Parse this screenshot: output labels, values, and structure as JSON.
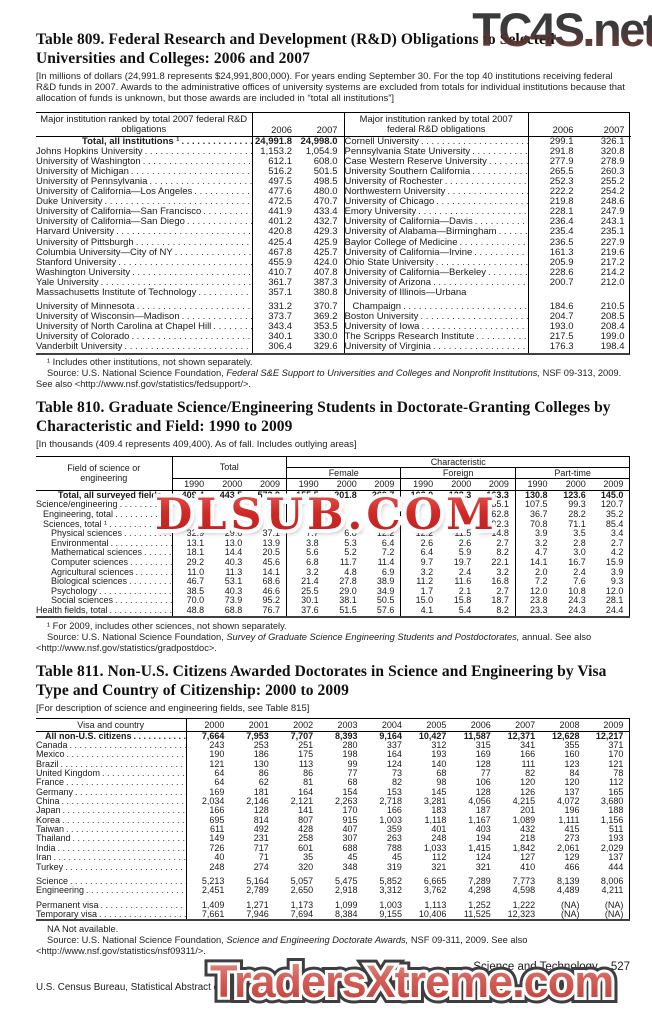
{
  "watermarks": {
    "top": "TC4S.net",
    "middle": "DLSUB.COM",
    "bottom": "TradersXtreme.com"
  },
  "tables": {
    "t809": {
      "title": "Table 809. Federal Research and Development (R&D) Obligations to Selected Universities and Colleges: 2006 and 2007",
      "note": "[In millions of dollars (24,991.8 represents $24,991,800,000). For years ending September 30. For the top 40 institutions receiving federal R&D funds in 2007. Awards to the administrative offices of university systems are excluded from totals for individual institutions because that allocation of funds is unknown, but those awards are included in “total all institutions”]",
      "header_label": "Major institution ranked by total 2007 federal R&D obligations",
      "years": [
        "2006",
        "2007"
      ],
      "left_rows": [
        {
          "label": "Total, all institutions ¹",
          "bold": true,
          "ind": 3,
          "v": [
            "24,991.8",
            "24,998.0"
          ]
        },
        {
          "label": "Johns Hopkins University",
          "v": [
            "1,153.2",
            "1,054.9"
          ]
        },
        {
          "label": "University of Washington",
          "v": [
            "612.1",
            "608.0"
          ]
        },
        {
          "label": "University of Michigan",
          "v": [
            "516.2",
            "501.5"
          ]
        },
        {
          "label": "University of Pennsylvania",
          "v": [
            "497.5",
            "498.5"
          ]
        },
        {
          "label": "University of California—Los Angeles",
          "v": [
            "477.6",
            "480.0"
          ]
        },
        {
          "label": "Duke University",
          "v": [
            "472.5",
            "470.7"
          ]
        },
        {
          "label": "University of California—San Francisco",
          "v": [
            "441.9",
            "433.4"
          ]
        },
        {
          "label": "University of California—San Diego",
          "v": [
            "401.2",
            "432.7"
          ]
        },
        {
          "label": "Harvard University",
          "v": [
            "420.8",
            "429.3"
          ]
        },
        {
          "label": "University of Pittsburgh",
          "v": [
            "425.4",
            "425.9"
          ]
        },
        {
          "label": "Columbia University—City of NY",
          "v": [
            "467.8",
            "425.7"
          ]
        },
        {
          "label": "Stanford University",
          "v": [
            "455.9",
            "424.0"
          ]
        },
        {
          "label": "Washington University",
          "v": [
            "410.7",
            "407.8"
          ]
        },
        {
          "label": "Yale University",
          "v": [
            "361.7",
            "387.3"
          ]
        },
        {
          "label": "Massachusetts Institute of Technology",
          "v": [
            "357.1",
            "380.8"
          ]
        },
        {
          "label": "University of Minnesota",
          "gap": true,
          "v": [
            "331.2",
            "370.7"
          ]
        },
        {
          "label": "University of Wisconsin—Madison",
          "v": [
            "373.7",
            "369.2"
          ]
        },
        {
          "label": "University of North Carolina at Chapel Hill",
          "v": [
            "343.4",
            "353.5"
          ]
        },
        {
          "label": "University of Colorado",
          "v": [
            "340.1",
            "330.0"
          ]
        },
        {
          "label": "Vanderbilt University",
          "v": [
            "306.4",
            "329.6"
          ]
        }
      ],
      "right_rows": [
        {
          "label": "Cornell University",
          "v": [
            "299.1",
            "326.1"
          ]
        },
        {
          "label": "Pennsylvania State University",
          "v": [
            "291.8",
            "320.8"
          ]
        },
        {
          "label": "Case Western Reserve University",
          "v": [
            "277.9",
            "278.9"
          ]
        },
        {
          "label": "University Southern California",
          "v": [
            "265.5",
            "260.3"
          ]
        },
        {
          "label": "University of Rochester",
          "v": [
            "252.3",
            "255.2"
          ]
        },
        {
          "label": "Northwestern University",
          "v": [
            "222.2",
            "254.2"
          ]
        },
        {
          "label": "University of Chicago",
          "v": [
            "219.8",
            "248.6"
          ]
        },
        {
          "label": "Emory University",
          "v": [
            "228.1",
            "247.9"
          ]
        },
        {
          "label": "University of California—Davis",
          "v": [
            "236.4",
            "243.1"
          ]
        },
        {
          "label": "University of Alabama—Birmingham",
          "v": [
            "235.4",
            "235.1"
          ]
        },
        {
          "label": "Baylor College of Medicine",
          "v": [
            "236.5",
            "227.9"
          ]
        },
        {
          "label": "University of California—Irvine",
          "v": [
            "161.3",
            "219.6"
          ]
        },
        {
          "label": "Ohio State University",
          "v": [
            "205.9",
            "217.2"
          ]
        },
        {
          "label": "University of California—Berkeley",
          "v": [
            "228.6",
            "214.2"
          ]
        },
        {
          "label": "University of Arizona",
          "v": [
            "200.7",
            "212.0"
          ]
        },
        {
          "label": "University of Illinois—Urbana",
          "nodots": true,
          "v": [
            "",
            ""
          ]
        },
        {
          "label": "Champaign",
          "gap": true,
          "ind": 1,
          "v": [
            "184.6",
            "210.5"
          ]
        },
        {
          "label": "Boston University",
          "v": [
            "204.7",
            "208.5"
          ]
        },
        {
          "label": "University of Iowa",
          "v": [
            "193.0",
            "208.4"
          ]
        },
        {
          "label": "The Scripps Research Institute",
          "v": [
            "217.5",
            "199.0"
          ]
        },
        {
          "label": "University of Virginia",
          "v": [
            "176.3",
            "198.4"
          ]
        }
      ],
      "footnote": "¹ Includes other institutions, not shown separately.",
      "source_pre": "Source: U.S. National Science Foundation, ",
      "source_italic": "Federal S&E Support to Universities and Colleges and Nonprofit Institutions,",
      "source_post": " NSF 09-313, 2009. See also <http://www.nsf.gov/statistics/fedsupport/>."
    },
    "t810": {
      "title": "Table 810. Graduate Science/Engineering Students in Doctorate-Granting Colleges by Characteristic and Field: 1990 to 2009",
      "note": "[In thousands (409.4 represents 409,400). As of fall. Includes outlying areas]",
      "field_label": "Field of science or engineering",
      "group_total": "Total",
      "group_characteristic": "Characteristic",
      "subgroups": [
        "Female",
        "Foreign",
        "Part-time"
      ],
      "years3": [
        "1990",
        "2000",
        "2009"
      ],
      "rows": [
        {
          "label": "Total, all surveyed fields",
          "bold": true,
          "ind": 3,
          "v": [
            "409.4",
            "443.5",
            "573.9",
            "155.5",
            "201.8",
            "269.7",
            "103.0",
            "123.3",
            "163.3",
            "130.8",
            "123.6",
            "145.0"
          ]
        },
        {
          "label": "Science/engineering",
          "v": [
            "",
            "",
            "",
            "",
            "",
            "",
            "",
            "",
            "155.1",
            "107.5",
            "99.3",
            "120.7"
          ]
        },
        {
          "label": "Engineering, total",
          "ind": 1,
          "v": [
            "",
            "",
            "",
            "",
            "",
            "",
            "",
            "",
            "62.8",
            "36.7",
            "28.2",
            "35.2"
          ]
        },
        {
          "label": "Sciences, total ¹",
          "ind": 1,
          "v": [
            "",
            "",
            "",
            "",
            "",
            "",
            "",
            "",
            "92.3",
            "70.8",
            "71.1",
            "85.4"
          ]
        },
        {
          "label": "Physical sciences",
          "ind": 2,
          "v": [
            "32.9",
            "29.6",
            "37.1",
            "7.7",
            "6.8",
            "12.2",
            "12.2",
            "11.5",
            "14.8",
            "3.9",
            "3.5",
            "3.4"
          ]
        },
        {
          "label": "Environmental",
          "ind": 2,
          "v": [
            "13.1",
            "13.0",
            "13.9",
            "3.8",
            "5.3",
            "6.4",
            "2.6",
            "2.6",
            "2.7",
            "3.2",
            "2.8",
            "2.7"
          ]
        },
        {
          "label": "Mathematical sciences",
          "ind": 2,
          "v": [
            "18.1",
            "14.4",
            "20.5",
            "5.6",
            "5.2",
            "7.2",
            "6.4",
            "5.9",
            "8.2",
            "4.7",
            "3.0",
            "4.2"
          ]
        },
        {
          "label": "Computer sciences",
          "ind": 2,
          "v": [
            "29.2",
            "40.3",
            "45.6",
            "6.8",
            "11.7",
            "11.4",
            "9.7",
            "19.7",
            "22.1",
            "14.1",
            "16.7",
            "15.9"
          ]
        },
        {
          "label": "Agricultural sciences",
          "ind": 2,
          "v": [
            "11.0",
            "11.3",
            "14.1",
            "3.2",
            "4.8",
            "6.9",
            "3.2",
            "2.4",
            "3.2",
            "2.0",
            "2.4",
            "3.9"
          ]
        },
        {
          "label": "Biological sciences",
          "ind": 2,
          "v": [
            "46.7",
            "53.1",
            "68.6",
            "21.4",
            "27.8",
            "38.9",
            "11.2",
            "11.6",
            "16.8",
            "7.2",
            "7.6",
            "9.3"
          ]
        },
        {
          "label": "Psychology",
          "ind": 2,
          "v": [
            "38.5",
            "40.3",
            "46.6",
            "25.5",
            "29.0",
            "34.9",
            "1.7",
            "2.1",
            "2.7",
            "12.0",
            "10.8",
            "12.0"
          ]
        },
        {
          "label": "Social sciences",
          "ind": 2,
          "v": [
            "70.0",
            "73.9",
            "95.2",
            "30.1",
            "38.1",
            "50.5",
            "15.0",
            "15.8",
            "18.7",
            "23.8",
            "24.3",
            "28.1"
          ]
        },
        {
          "label": "Health fields, total",
          "v": [
            "48.8",
            "68.8",
            "76.7",
            "37.6",
            "51.5",
            "57.6",
            "4.1",
            "5.4",
            "8.2",
            "23.3",
            "24.3",
            "24.4"
          ]
        }
      ],
      "footnote": "¹ For 2009, includes other sciences, not shown separately.",
      "source_pre": "Source: U.S. National Science Foundation, ",
      "source_italic": "Survey of Graduate Science Engineering Students and Postdoctorates,",
      "source_post": " annual. See also <http://www.nsf.gov/statistics/gradpostdoc>."
    },
    "t811": {
      "title": "Table 811. Non-U.S. Citizens Awarded Doctorates in Science and Engineering by Visa Type and Country of Citizenship: 2000 to 2009",
      "note": "[For description of science and engineering fields, see Table 815]",
      "header_label": "Visa and country",
      "years": [
        "2000",
        "2001",
        "2002",
        "2003",
        "2004",
        "2005",
        "2006",
        "2007",
        "2008",
        "2009"
      ],
      "rows": [
        {
          "label": "All non-U.S. citizens",
          "bold": true,
          "ind": 1,
          "v": [
            "7,664",
            "7,953",
            "7,707",
            "8,393",
            "9,164",
            "10,427",
            "11,587",
            "12,371",
            "12,628",
            "12,217"
          ]
        },
        {
          "label": "Canada",
          "v": [
            "243",
            "253",
            "251",
            "280",
            "337",
            "312",
            "315",
            "341",
            "355",
            "371"
          ]
        },
        {
          "label": "Mexico",
          "v": [
            "190",
            "186",
            "175",
            "198",
            "164",
            "193",
            "169",
            "166",
            "160",
            "170"
          ]
        },
        {
          "label": "Brazil",
          "v": [
            "121",
            "130",
            "113",
            "99",
            "124",
            "140",
            "128",
            "111",
            "123",
            "121"
          ]
        },
        {
          "label": "United Kingdom",
          "v": [
            "64",
            "86",
            "86",
            "77",
            "73",
            "68",
            "77",
            "82",
            "84",
            "78"
          ]
        },
        {
          "label": "France",
          "v": [
            "64",
            "62",
            "81",
            "68",
            "82",
            "98",
            "106",
            "120",
            "120",
            "112"
          ]
        },
        {
          "label": "Germany",
          "v": [
            "169",
            "181",
            "164",
            "154",
            "153",
            "145",
            "128",
            "126",
            "137",
            "165"
          ]
        },
        {
          "label": "China",
          "v": [
            "2,034",
            "2,146",
            "2,121",
            "2,263",
            "2,718",
            "3,281",
            "4,056",
            "4,215",
            "4,072",
            "3,680"
          ]
        },
        {
          "label": "Japan",
          "v": [
            "166",
            "128",
            "141",
            "170",
            "166",
            "183",
            "187",
            "201",
            "196",
            "188"
          ]
        },
        {
          "label": "Korea",
          "v": [
            "695",
            "814",
            "807",
            "915",
            "1,003",
            "1,118",
            "1,167",
            "1,089",
            "1,111",
            "1,156"
          ]
        },
        {
          "label": "Taiwan",
          "v": [
            "611",
            "492",
            "428",
            "407",
            "359",
            "401",
            "403",
            "432",
            "415",
            "511"
          ]
        },
        {
          "label": "Thailand",
          "v": [
            "149",
            "231",
            "258",
            "307",
            "263",
            "248",
            "194",
            "218",
            "273",
            "193"
          ]
        },
        {
          "label": "India",
          "v": [
            "726",
            "717",
            "601",
            "688",
            "788",
            "1,033",
            "1,415",
            "1,842",
            "2,061",
            "2,029"
          ]
        },
        {
          "label": "Iran",
          "v": [
            "40",
            "71",
            "35",
            "45",
            "45",
            "112",
            "124",
            "127",
            "129",
            "137"
          ]
        },
        {
          "label": "Turkey",
          "v": [
            "248",
            "274",
            "320",
            "348",
            "319",
            "321",
            "321",
            "410",
            "466",
            "444"
          ]
        },
        {
          "label": "Science",
          "gap": true,
          "v": [
            "5,213",
            "5,164",
            "5,057",
            "5,475",
            "5,852",
            "6,665",
            "7,289",
            "7,773",
            "8,139",
            "8,006"
          ]
        },
        {
          "label": "Engineering",
          "v": [
            "2,451",
            "2,789",
            "2,650",
            "2,918",
            "3,312",
            "3,762",
            "4,298",
            "4,598",
            "4,489",
            "4,211"
          ]
        },
        {
          "label": "Permanent visa",
          "gap": true,
          "v": [
            "1,409",
            "1,271",
            "1,173",
            "1,099",
            "1,003",
            "1,113",
            "1,252",
            "1,222",
            "(NA)",
            "(NA)"
          ]
        },
        {
          "label": "Temporary visa",
          "v": [
            "7,661",
            "7,946",
            "7,694",
            "8,384",
            "9,155",
            "10,406",
            "11,525",
            "12,323",
            "(NA)",
            "(NA)"
          ]
        }
      ],
      "na_note": "NA Not available.",
      "source_pre": "Source: U.S. National Science Foundation, ",
      "source_italic": "Science and Engineering Doctorate Awards,",
      "source_post": " NSF 09-311, 2009. See also <http://www.nsf.gov/statistics/nsf09311/>."
    }
  },
  "footer": {
    "section": "Science and Technology",
    "page": "527",
    "bureau": "U.S. Census Bureau, Statistical Abstract of the United States: 2012"
  }
}
